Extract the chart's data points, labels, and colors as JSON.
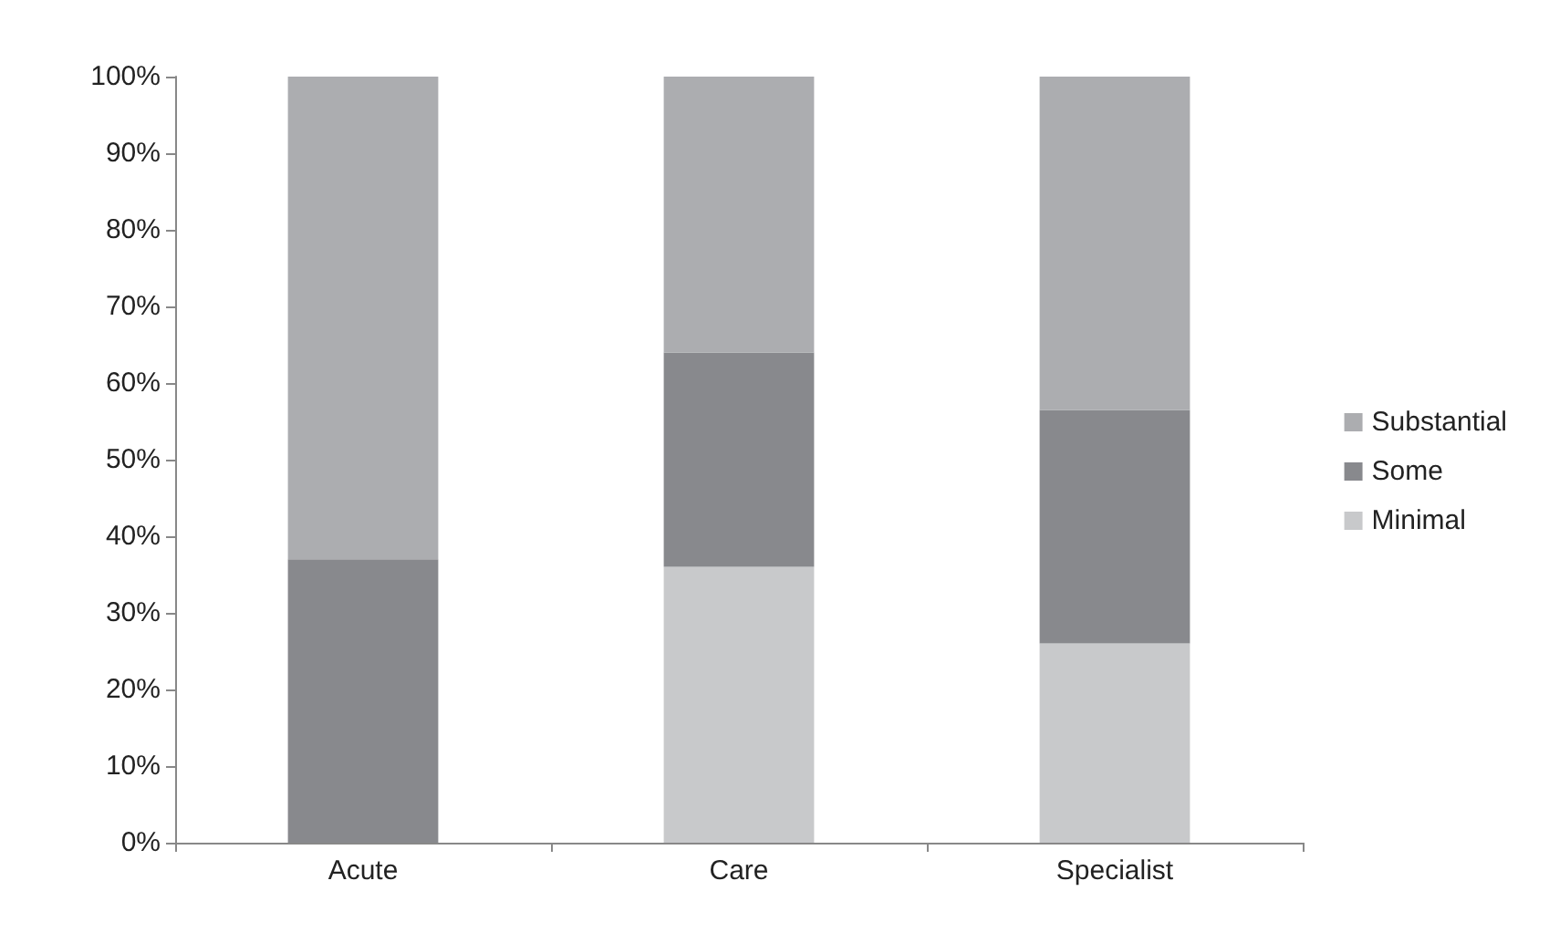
{
  "chart_data": {
    "type": "bar",
    "stacked": true,
    "categories": [
      "Acute",
      "Care",
      "Specialist"
    ],
    "series": [
      {
        "name": "Minimal",
        "color": "#c8c9cb",
        "values": [
          0,
          36,
          26
        ]
      },
      {
        "name": "Some",
        "color": "#88898d",
        "values": [
          37,
          28,
          30.5
        ]
      },
      {
        "name": "Substantial",
        "color": "#acadb0",
        "values": [
          63,
          36,
          43.5
        ]
      }
    ],
    "ylim": [
      0,
      100
    ],
    "yticks": [
      {
        "value": 0,
        "label": "0%"
      },
      {
        "value": 10,
        "label": "10%"
      },
      {
        "value": 20,
        "label": "20%"
      },
      {
        "value": 30,
        "label": "30%"
      },
      {
        "value": 40,
        "label": "40%"
      },
      {
        "value": 50,
        "label": "50%"
      },
      {
        "value": 60,
        "label": "60%"
      },
      {
        "value": 70,
        "label": "70%"
      },
      {
        "value": 80,
        "label": "80%"
      },
      {
        "value": 90,
        "label": "90%"
      },
      {
        "value": 100,
        "label": "100%"
      }
    ],
    "grid": false,
    "legend": "right"
  }
}
